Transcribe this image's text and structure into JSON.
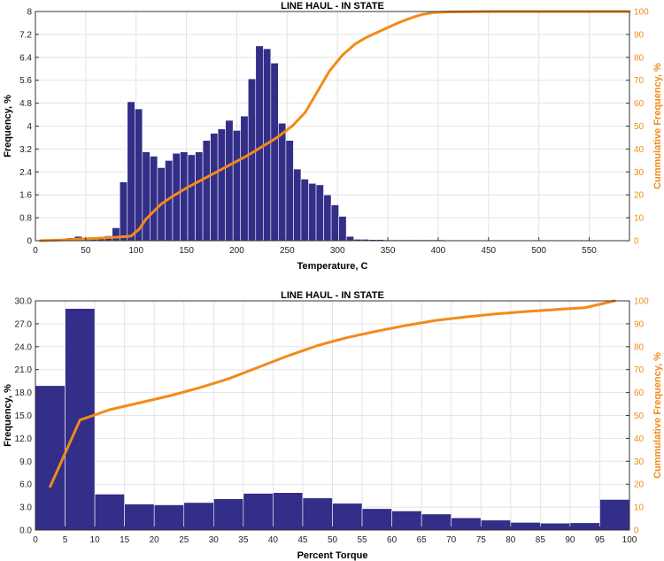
{
  "chart_data": [
    {
      "type": "bar",
      "title": "LINE HAUL - IN STATE",
      "xlabel": "Temperature, C",
      "ylabel": "Frequency, %",
      "y2label": "Cummulative Frequency, %",
      "xlim": [
        0,
        590
      ],
      "ylim": [
        0,
        8
      ],
      "y2lim": [
        0,
        100
      ],
      "xticks": [
        0,
        50,
        100,
        150,
        200,
        250,
        300,
        350,
        400,
        450,
        500,
        550
      ],
      "yticks": [
        0,
        0.8,
        1.6,
        2.4,
        3.2,
        4,
        4.8,
        5.6,
        6.4,
        7.2,
        8
      ],
      "ytick_labels": [
        "0",
        "0.8",
        "1.6",
        "2.4",
        "3.2",
        "4",
        "4.8",
        "5.6",
        "6.4",
        "7.2",
        "8"
      ],
      "y2ticks": [
        0,
        10,
        20,
        30,
        40,
        50,
        60,
        70,
        80,
        90,
        100
      ],
      "bin_width": 7.5,
      "bar_centers": [
        35,
        42.5,
        50,
        57.5,
        65,
        72.5,
        80,
        87.5,
        95,
        102.5,
        110,
        117.5,
        125,
        132.5,
        140,
        147.5,
        155,
        162.5,
        170,
        177.5,
        185,
        192.5,
        200,
        207.5,
        215,
        222.5,
        230,
        237.5,
        245,
        252.5,
        260,
        267.5,
        275,
        282.5,
        290,
        297.5,
        305,
        312.5,
        320,
        327.5,
        335,
        342.5,
        350,
        357.5,
        365,
        372.5,
        380,
        387.5,
        395,
        402.5,
        410,
        417.5,
        425,
        432.5,
        440,
        447.5,
        455,
        462.5,
        470,
        477.5,
        485,
        492.5,
        500,
        507.5,
        515,
        522.5,
        530,
        537.5,
        545,
        552.5,
        560,
        567.5
      ],
      "values": [
        0.1,
        0.15,
        0.05,
        0.12,
        0.13,
        0.17,
        0.45,
        2.05,
        4.85,
        4.6,
        3.1,
        2.95,
        2.55,
        2.8,
        3.05,
        3.1,
        3.0,
        3.1,
        3.5,
        3.75,
        3.9,
        4.2,
        3.85,
        4.35,
        5.65,
        6.8,
        6.7,
        6.2,
        4.1,
        3.5,
        2.5,
        2.15,
        2.0,
        1.95,
        1.6,
        1.25,
        0.85,
        0.15,
        0.05,
        0.05,
        0.04,
        0.04,
        0.03,
        0.03,
        0.03,
        0.03,
        0.03,
        0.03,
        0.03,
        0.03,
        0.02,
        0.02,
        0.02,
        0.02,
        0.02,
        0.02,
        0.02,
        0.02,
        0.02,
        0.02,
        0.02,
        0.02,
        0.02,
        0.02,
        0.02,
        0.02,
        0.02,
        0.02,
        0.02,
        0.02,
        0.01,
        0.01
      ],
      "cumulative": {
        "x": [
          5,
          20,
          40,
          60,
          80,
          95,
          103,
          110,
          118,
          125,
          135,
          150,
          165,
          180,
          195,
          210,
          225,
          240,
          255,
          268,
          280,
          292,
          305,
          318,
          330,
          345,
          360,
          375,
          385,
          395,
          410,
          450,
          500,
          550,
          590
        ],
        "y": [
          0,
          0.2,
          0.6,
          1.0,
          1.5,
          2.0,
          5.0,
          9.5,
          13.0,
          16.0,
          19.0,
          23.0,
          26.5,
          30.0,
          33.5,
          37.0,
          41.0,
          45.0,
          50.0,
          56.0,
          65.0,
          74.0,
          81.0,
          86.0,
          89.0,
          92.0,
          95.0,
          97.5,
          98.8,
          99.5,
          99.8,
          100,
          100,
          100,
          100
        ]
      }
    },
    {
      "type": "bar",
      "title": "LINE HAUL - IN STATE",
      "xlabel": "Percent Torque",
      "ylabel": "Frequency, %",
      "y2label": "Cummulative Frequency, %",
      "xlim": [
        0,
        100
      ],
      "ylim": [
        0,
        30
      ],
      "y2lim": [
        0,
        100
      ],
      "xticks": [
        0,
        5,
        10,
        15,
        20,
        25,
        30,
        35,
        40,
        45,
        50,
        55,
        60,
        65,
        70,
        75,
        80,
        85,
        90,
        95,
        100
      ],
      "yticks": [
        0,
        3,
        6,
        9,
        12,
        15,
        18,
        21,
        24,
        27,
        30
      ],
      "ytick_labels": [
        "0.0",
        "3.0",
        "6.0",
        "9.0",
        "12.0",
        "15.0",
        "18.0",
        "21.0",
        "24.0",
        "27.0",
        "30.0"
      ],
      "y2ticks": [
        0,
        10,
        20,
        30,
        40,
        50,
        60,
        70,
        80,
        90,
        100
      ],
      "bin_width": 5,
      "bar_centers": [
        2.5,
        7.5,
        12.5,
        17.5,
        22.5,
        27.5,
        32.5,
        37.5,
        42.5,
        47.5,
        52.5,
        57.5,
        62.5,
        67.5,
        72.5,
        77.5,
        82.5,
        87.5,
        92.5,
        97.5
      ],
      "values": [
        18.9,
        29.0,
        4.7,
        3.4,
        3.3,
        3.6,
        4.1,
        4.8,
        4.9,
        4.2,
        3.5,
        2.8,
        2.5,
        2.1,
        1.6,
        1.3,
        1.0,
        0.9,
        0.95,
        4.0
      ],
      "cumulative": {
        "x": [
          2.5,
          7.5,
          12.5,
          17.5,
          22.5,
          27.5,
          32.5,
          37.5,
          42.5,
          47.5,
          52.5,
          57.5,
          62.5,
          67.5,
          72.5,
          77.5,
          82.5,
          87.5,
          92.5,
          97.5
        ],
        "y": [
          19.0,
          48.0,
          52.5,
          55.5,
          58.5,
          62.0,
          66.0,
          71.0,
          76.0,
          80.5,
          84.0,
          86.8,
          89.3,
          91.5,
          93.0,
          94.3,
          95.3,
          96.2,
          97.0,
          100.0
        ]
      }
    }
  ],
  "colors": {
    "bar": "#332e87",
    "cumulative": "#f28a1a"
  }
}
